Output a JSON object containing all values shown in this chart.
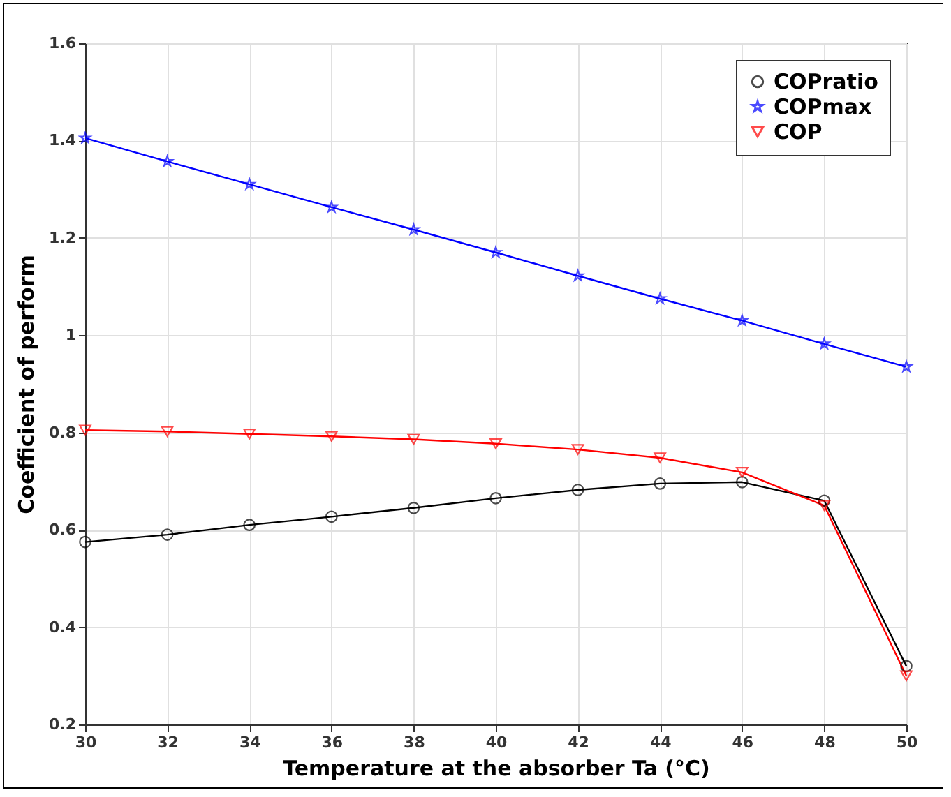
{
  "chart_data": {
    "type": "line",
    "xlabel": "Temperature at the absorber Ta (°C)",
    "ylabel": "Coefficient of perform",
    "x": [
      30,
      32,
      34,
      36,
      38,
      40,
      42,
      44,
      46,
      48,
      50
    ],
    "xlim": [
      30,
      50
    ],
    "xticks": [
      30,
      32,
      34,
      36,
      38,
      40,
      42,
      44,
      46,
      48,
      50
    ],
    "ylim": [
      0.2,
      1.6
    ],
    "yticks": [
      0.2,
      0.4,
      0.6,
      0.8,
      1,
      1.2,
      1.4,
      1.6
    ],
    "grid": true,
    "legend": "top right",
    "series": [
      {
        "name": "COPratio",
        "color": "#000000",
        "marker": "circle",
        "values": [
          0.575,
          0.59,
          0.61,
          0.627,
          0.645,
          0.665,
          0.682,
          0.695,
          0.698,
          0.66,
          0.32
        ]
      },
      {
        "name": "COPmax",
        "color": "#0000ff",
        "marker": "star",
        "values": [
          1.405,
          1.357,
          1.31,
          1.263,
          1.217,
          1.17,
          1.122,
          1.075,
          1.03,
          0.982,
          0.935
        ]
      },
      {
        "name": "COP",
        "color": "#ff0000",
        "marker": "triangle",
        "values": [
          0.805,
          0.802,
          0.797,
          0.792,
          0.786,
          0.777,
          0.765,
          0.748,
          0.718,
          0.65,
          0.3
        ]
      }
    ]
  }
}
